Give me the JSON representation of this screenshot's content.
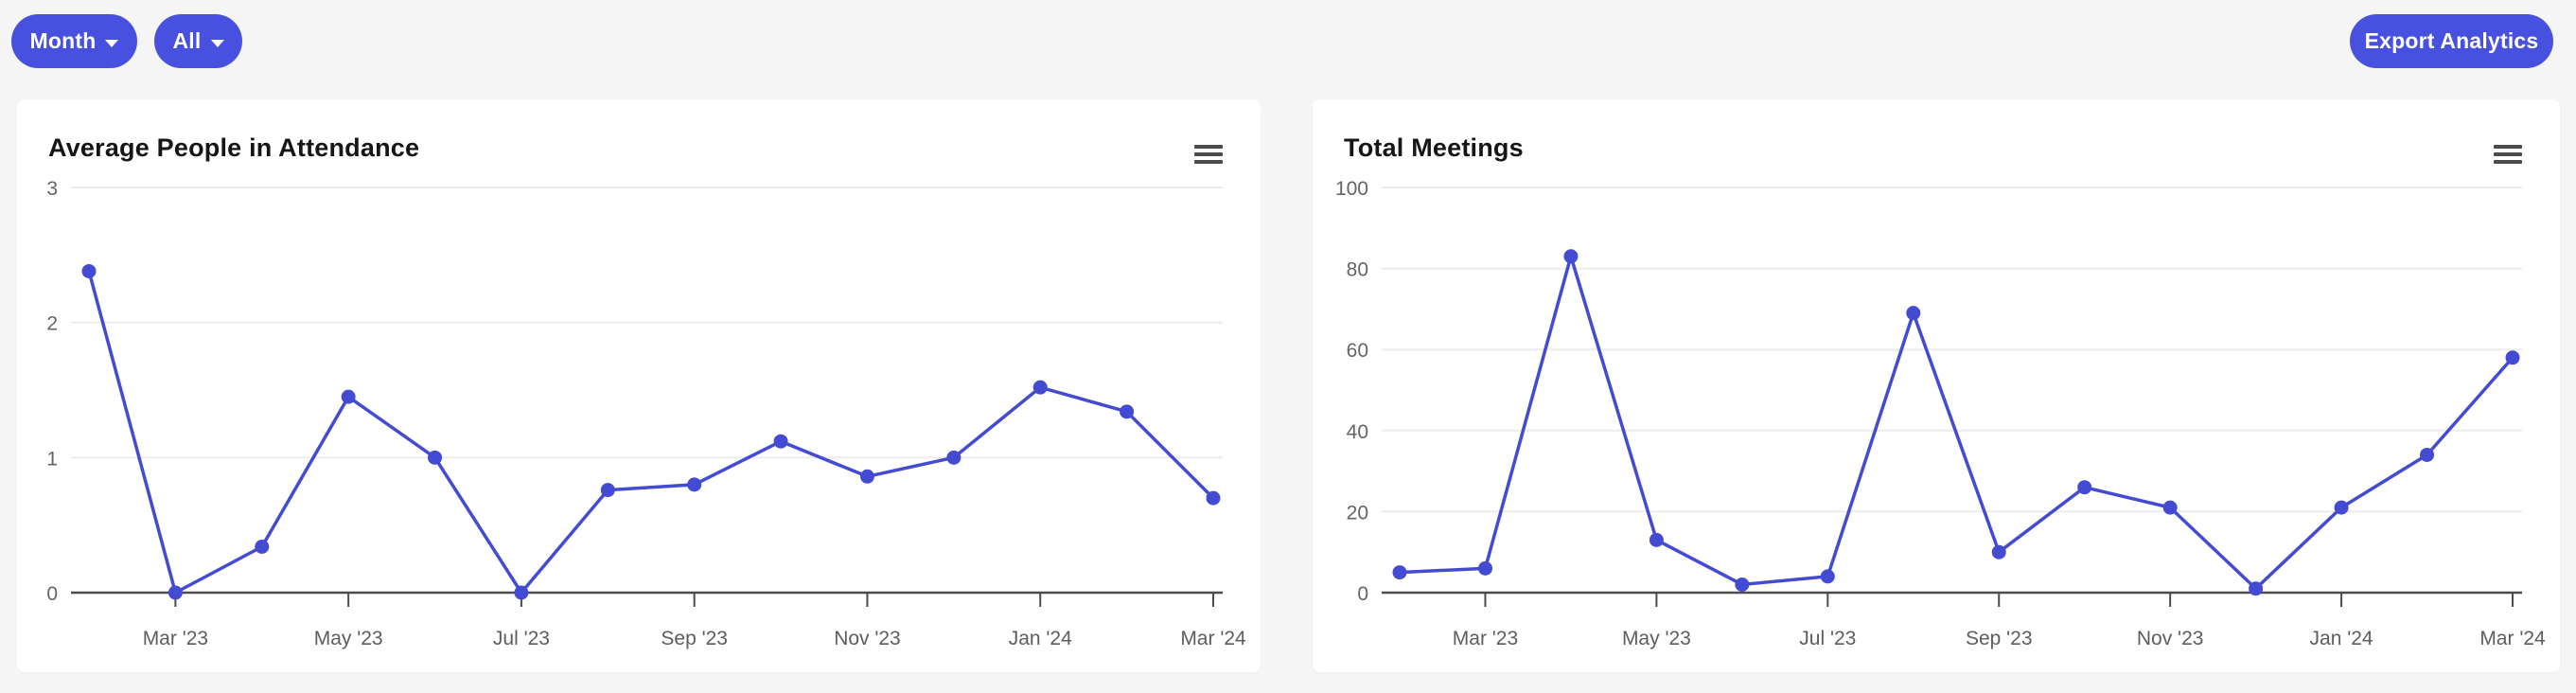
{
  "header": {
    "filters": [
      {
        "label": "Month",
        "has_caret": true
      },
      {
        "label": "All",
        "has_caret": true
      }
    ],
    "export_label": "Export Analytics"
  },
  "colors": {
    "accent": "#4750DF",
    "line": "#444BD3",
    "point": "#444BD3",
    "grid": "#ececec",
    "axis": "#4c4c4c",
    "y_label": "#646464",
    "x_label": "#5d5d5d",
    "page_bg": "#f5f5f6",
    "card_bg": "#ffffff"
  },
  "icons": {
    "card_menu": "hamburger-menu-icon",
    "filter_caret": "chevron-down-icon"
  },
  "chart_data": [
    {
      "type": "line",
      "title": "Average People in Attendance",
      "x": [
        "Feb '23",
        "Mar '23",
        "Apr '23",
        "May '23",
        "Jun '23",
        "Jul '23",
        "Aug '23",
        "Sep '23",
        "Oct '23",
        "Nov '23",
        "Dec '23",
        "Jan '24",
        "Feb '24",
        "Mar '24"
      ],
      "values": [
        2.38,
        0,
        0.34,
        1.45,
        1,
        0,
        0.76,
        0.8,
        1.12,
        0.86,
        1,
        1.52,
        1.34,
        0.7
      ],
      "ylim": [
        0,
        3
      ],
      "yticks": [
        0,
        1,
        2,
        3
      ],
      "xticks": {
        "indices": [
          1,
          3,
          5,
          7,
          9,
          11,
          13
        ],
        "labels": [
          "Mar '23",
          "May '23",
          "Jul '23",
          "Sep '23",
          "Nov '23",
          "Jan '24",
          "Mar '24"
        ]
      },
      "grid": "horizontal",
      "legend": "none",
      "xlabel": "",
      "ylabel": ""
    },
    {
      "type": "line",
      "title": "Total Meetings",
      "x": [
        "Feb '23",
        "Mar '23",
        "Apr '23",
        "May '23",
        "Jun '23",
        "Jul '23",
        "Aug '23",
        "Sep '23",
        "Oct '23",
        "Nov '23",
        "Dec '23",
        "Jan '24",
        "Feb '24",
        "Mar '24"
      ],
      "values": [
        5,
        6,
        83,
        13,
        2,
        4,
        69,
        10,
        26,
        21,
        1,
        21,
        34,
        58
      ],
      "ylim": [
        0,
        100
      ],
      "yticks": [
        0,
        20,
        40,
        60,
        80,
        100
      ],
      "xticks": {
        "indices": [
          1,
          3,
          5,
          7,
          9,
          11,
          13
        ],
        "labels": [
          "Mar '23",
          "May '23",
          "Jul '23",
          "Sep '23",
          "Nov '23",
          "Jan '24",
          "Mar '24"
        ]
      },
      "grid": "horizontal",
      "legend": "none",
      "xlabel": "",
      "ylabel": ""
    }
  ]
}
